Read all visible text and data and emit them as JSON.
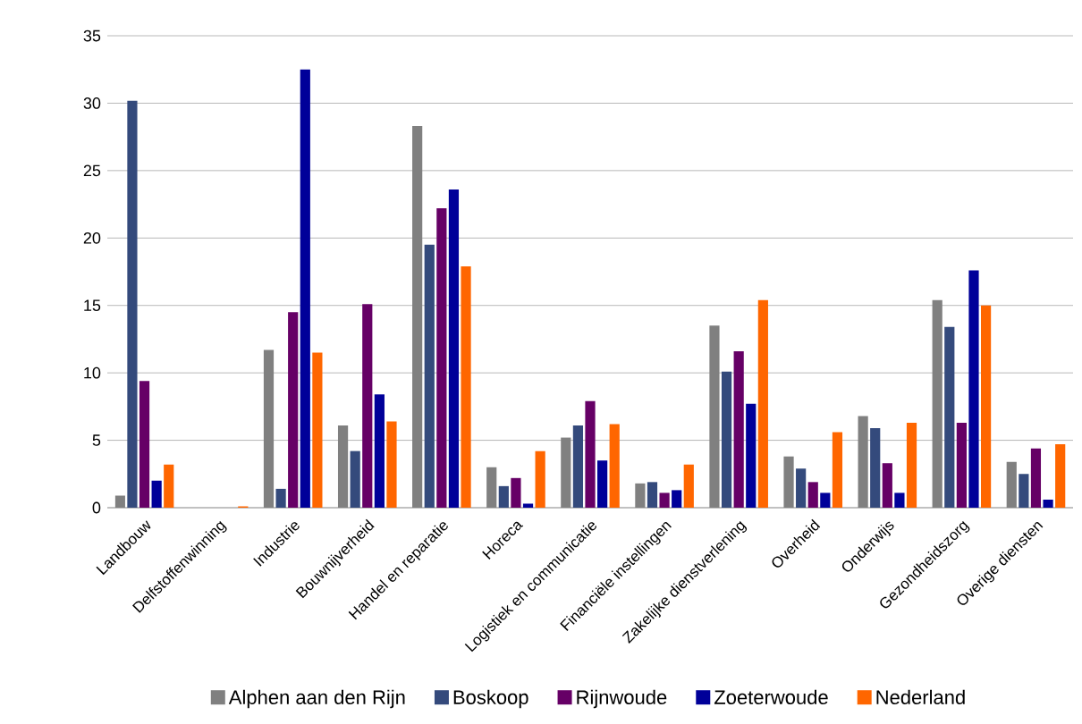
{
  "chart_data": {
    "type": "bar",
    "categories": [
      "Landbouw",
      "Delfstoffenwinning",
      "Industrie",
      "Bouwnijverheid",
      "Handel en reparatie",
      "Horeca",
      "Logistiek en communicatie",
      "Financiële instellingen",
      "Zakelijke dienstverlening",
      "Overheid",
      "Onderwijs",
      "Gezondheidszorg",
      "Overige diensten"
    ],
    "series": [
      {
        "name": "Alphen aan den Rijn",
        "color": "#808080",
        "values": [
          0.9,
          0,
          11.7,
          6.1,
          28.3,
          3.0,
          5.2,
          1.8,
          13.5,
          3.8,
          6.8,
          15.4,
          3.4
        ]
      },
      {
        "name": "Boskoop",
        "color": "#344a7c",
        "values": [
          30.2,
          0,
          1.4,
          4.2,
          19.5,
          1.6,
          6.1,
          1.9,
          10.1,
          2.9,
          5.9,
          13.4,
          2.5
        ]
      },
      {
        "name": "Rijnwoude",
        "color": "#660066",
        "values": [
          9.4,
          0,
          14.5,
          15.1,
          22.2,
          2.2,
          7.9,
          1.1,
          11.6,
          1.9,
          3.3,
          6.3,
          4.4
        ]
      },
      {
        "name": "Zoeterwoude",
        "color": "#000099",
        "values": [
          2.0,
          0,
          32.5,
          8.4,
          23.6,
          0.3,
          3.5,
          1.3,
          7.7,
          1.1,
          1.1,
          17.6,
          0.6
        ]
      },
      {
        "name": "Nederland",
        "color": "#ff6600",
        "values": [
          3.2,
          0.1,
          11.5,
          6.4,
          17.9,
          4.2,
          6.2,
          3.2,
          15.4,
          5.6,
          6.3,
          15.0,
          4.7
        ]
      }
    ],
    "ylim": [
      0,
      35
    ],
    "yticks": [
      0,
      5,
      10,
      15,
      20,
      25,
      30,
      35
    ],
    "grid": "y",
    "legend": "bottom"
  }
}
